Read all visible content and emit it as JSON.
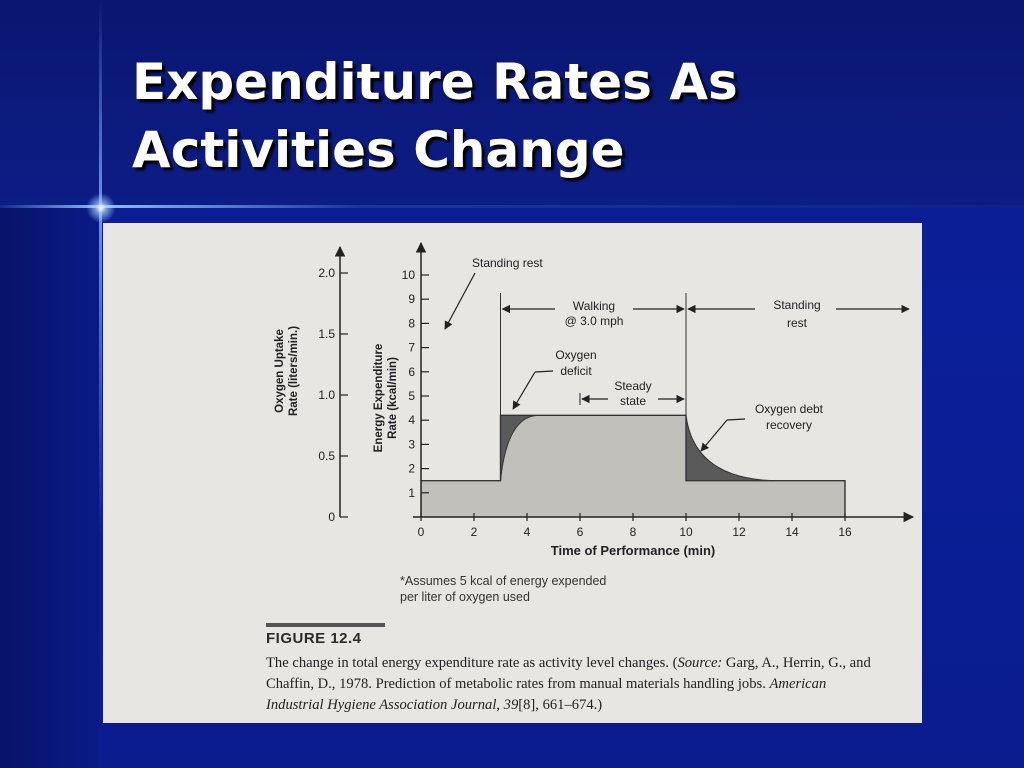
{
  "slide": {
    "title_line1": "Expenditure Rates As",
    "title_line2": "Activities Change"
  },
  "figure": {
    "label": "FIGURE 12.4",
    "caption_parts": [
      {
        "text": "The change in total energy expenditure rate as activity level changes. (",
        "italic": false
      },
      {
        "text": "Source:",
        "italic": true
      },
      {
        "text": " Garg, A., Herrin, G., and Chaffin, D., 1978. Prediction of metabolic rates from manual materials handling jobs. ",
        "italic": false
      },
      {
        "text": "American Industrial Hygiene Association Journal, 39",
        "italic": true
      },
      {
        "text": "[8], 661–674.)",
        "italic": false
      }
    ],
    "note_line1": "*Assumes 5 kcal of energy expended",
    "note_line2": "per liter of oxygen used"
  },
  "chart_data": {
    "type": "area",
    "xlabel": "Time of Performance (min)",
    "ylabel": "Energy Expenditure Rate (kcal/min)",
    "y2label": "Oxygen Uptake Rate (liters/min.)",
    "x_ticks": [
      0,
      2,
      4,
      6,
      8,
      10,
      12,
      14,
      16
    ],
    "y_ticks": [
      1,
      2,
      3,
      4,
      5,
      6,
      7,
      8,
      9,
      10
    ],
    "y2_ticks": [
      "0",
      "0.5",
      "1.0",
      "1.5",
      "2.0"
    ],
    "xlim": [
      0,
      17.5
    ],
    "ylim": [
      0,
      10.5
    ],
    "y2lim": [
      0,
      2.0
    ],
    "series": [
      {
        "x": [
          0,
          3,
          3,
          10,
          10,
          16,
          16
        ],
        "y": [
          1.5,
          1.5,
          4.2,
          4.2,
          1.5,
          1.5,
          0
        ]
      }
    ],
    "annotations": [
      {
        "text": "Standing rest"
      },
      {
        "text": "Walking",
        "text2": "@ 3.0 mph"
      },
      {
        "text": "Standing",
        "text2": "rest"
      },
      {
        "text": "Oxygen",
        "text2": "deficit"
      },
      {
        "text": "Steady",
        "text2": "state"
      },
      {
        "text": "Oxygen debt",
        "text2": "recovery"
      }
    ],
    "colors": {
      "fill": "#c2c0bb",
      "dark": "#5a5a5a"
    }
  }
}
